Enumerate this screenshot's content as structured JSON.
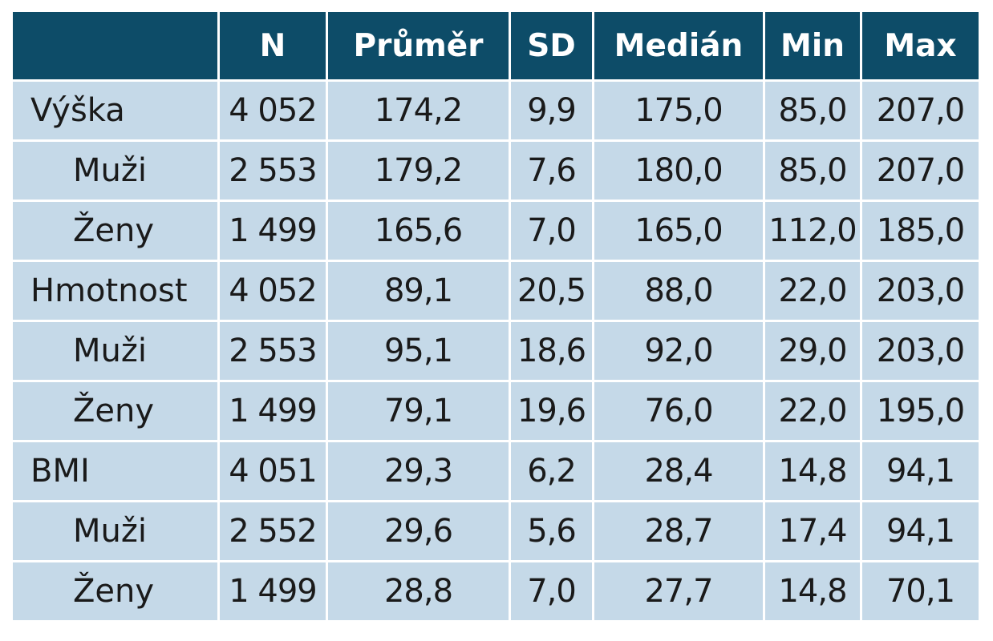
{
  "table": {
    "headers": [
      "",
      "N",
      "Průměr",
      "SD",
      "Medián",
      "Min",
      "Max"
    ],
    "rows": [
      {
        "label": "Výška",
        "indent": false,
        "cells": [
          "4 052",
          "174,2",
          "9,9",
          "175,0",
          "85,0",
          "207,0"
        ]
      },
      {
        "label": "Muži",
        "indent": true,
        "cells": [
          "2 553",
          "179,2",
          "7,6",
          "180,0",
          "85,0",
          "207,0"
        ]
      },
      {
        "label": "Ženy",
        "indent": true,
        "cells": [
          "1 499",
          "165,6",
          "7,0",
          "165,0",
          "112,0",
          "185,0"
        ]
      },
      {
        "label": "Hmotnost",
        "indent": false,
        "cells": [
          "4 052",
          "89,1",
          "20,5",
          "88,0",
          "22,0",
          "203,0"
        ]
      },
      {
        "label": "Muži",
        "indent": true,
        "cells": [
          "2 553",
          "95,1",
          "18,6",
          "92,0",
          "29,0",
          "203,0"
        ]
      },
      {
        "label": "Ženy",
        "indent": true,
        "cells": [
          "1 499",
          "79,1",
          "19,6",
          "76,0",
          "22,0",
          "195,0"
        ]
      },
      {
        "label": "BMI",
        "indent": false,
        "cells": [
          "4 051",
          "29,3",
          "6,2",
          "28,4",
          "14,8",
          "94,1"
        ]
      },
      {
        "label": "Muži",
        "indent": true,
        "cells": [
          "2 552",
          "29,6",
          "5,6",
          "28,7",
          "17,4",
          "94,1"
        ]
      },
      {
        "label": "Ženy",
        "indent": true,
        "cells": [
          "1 499",
          "28,8",
          "7,0",
          "27,7",
          "14,8",
          "70,1"
        ]
      }
    ]
  },
  "colors": {
    "header_background": "#0d4c68",
    "header_text": "#ffffff",
    "body_background": "#c5d9e8",
    "body_text": "#1a1a1a"
  }
}
